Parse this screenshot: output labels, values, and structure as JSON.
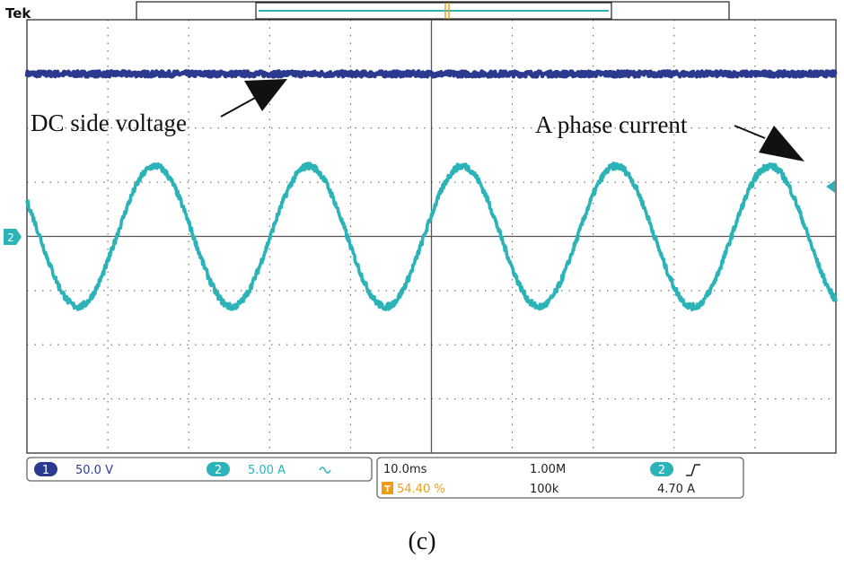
{
  "brand": "Tek",
  "caption": "(c)",
  "colors": {
    "ch1": "#2b3a8f",
    "ch2": "#2bb3b8",
    "trigger": "#f39c12",
    "grid": "#555555",
    "frame": "#333333"
  },
  "annotations": {
    "dc_label": "DC side voltage",
    "ac_label": "A phase current"
  },
  "markers": {
    "ch2_ground": "2",
    "trigger_marker": "T"
  },
  "readout": {
    "ch1_number": "1",
    "ch1_scale": "50.0 V",
    "ch2_number": "2",
    "ch2_scale": "5.00 A",
    "ch2_coupling_icon": "ac-coupling-icon",
    "time_scale": "10.0ms",
    "record_length": "1.00M",
    "trigger_position": "54.40 %",
    "sample_rate": "100k",
    "trigger_source": "2",
    "trigger_slope_icon": "rising-edge-icon",
    "trigger_level": "4.70 A"
  },
  "chart_data": {
    "type": "line",
    "xlabel": "",
    "ylabel": "",
    "x_units": "divisions",
    "xlim": [
      0,
      10
    ],
    "ylim": [
      -4,
      4
    ],
    "grid": true,
    "legend": "none",
    "series": [
      {
        "name": "DC side voltage",
        "channel": 1,
        "kind": "constant",
        "level_div": 3.0,
        "noise_div": 0.05
      },
      {
        "name": "A phase current",
        "channel": 2,
        "kind": "sine",
        "amplitude_div": 1.3,
        "period_div": 1.9,
        "offset_div": 0,
        "phase_at_x0_deg": 150,
        "noise_div": 0.06
      }
    ]
  }
}
